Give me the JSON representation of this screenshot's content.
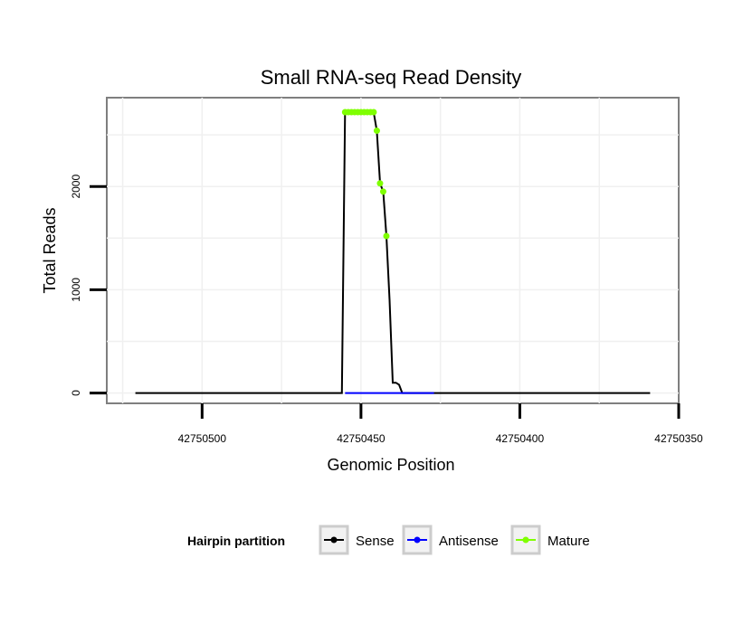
{
  "chart_data": {
    "type": "line",
    "title": "Small RNA-seq Read Density",
    "xlabel": "Genomic Position",
    "ylabel": "Total Reads",
    "x_reversed": true,
    "xlim": [
      42750530,
      42750350
    ],
    "ylim": [
      -100,
      2860
    ],
    "x_ticks": [
      {
        "value": 42750500,
        "label": "42750500"
      },
      {
        "value": 42750450,
        "label": "42750450"
      },
      {
        "value": 42750400,
        "label": "42750400"
      },
      {
        "value": 42750350,
        "label": "42750350"
      }
    ],
    "y_ticks": [
      {
        "value": 0,
        "label": "0"
      },
      {
        "value": 1000,
        "label": "1000"
      },
      {
        "value": 2000,
        "label": "2000"
      }
    ],
    "grid": true,
    "legend": {
      "title": "Hairpin partition",
      "position": "bottom",
      "entries": [
        {
          "name": "Sense",
          "color": "#000000"
        },
        {
          "name": "Antisense",
          "color": "#0000ff"
        },
        {
          "name": "Mature",
          "color": "#7fff00"
        }
      ]
    },
    "series": [
      {
        "name": "Sense",
        "color": "#000000",
        "x": [
          42750521,
          42750456,
          42750455,
          42750446,
          42750445,
          42750444,
          42750443,
          42750442,
          42750441,
          42750440,
          42750439,
          42750438,
          42750437,
          42750436,
          42750435,
          42750434,
          42750433,
          42750432,
          42750431,
          42750430,
          42750429,
          42750428,
          42750427,
          42750359
        ],
        "y": [
          0,
          0,
          2720,
          2720,
          2540,
          2030,
          1950,
          1520,
          900,
          100,
          100,
          80,
          0,
          0,
          0,
          0,
          0,
          0,
          0,
          0,
          0,
          0,
          0,
          0
        ]
      },
      {
        "name": "Antisense",
        "color": "#0000ff",
        "x": [
          42750455,
          42750427
        ],
        "y": [
          0,
          0
        ]
      },
      {
        "name": "Mature",
        "color": "#7fff00",
        "points_only": true,
        "x": [
          42750455,
          42750454,
          42750453,
          42750452,
          42750451,
          42750450,
          42750449,
          42750448,
          42750447,
          42750446,
          42750445,
          42750444,
          42750443,
          42750442
        ],
        "y": [
          2720,
          2720,
          2720,
          2720,
          2720,
          2720,
          2720,
          2720,
          2720,
          2720,
          2540,
          2030,
          1950,
          1520
        ]
      }
    ]
  }
}
